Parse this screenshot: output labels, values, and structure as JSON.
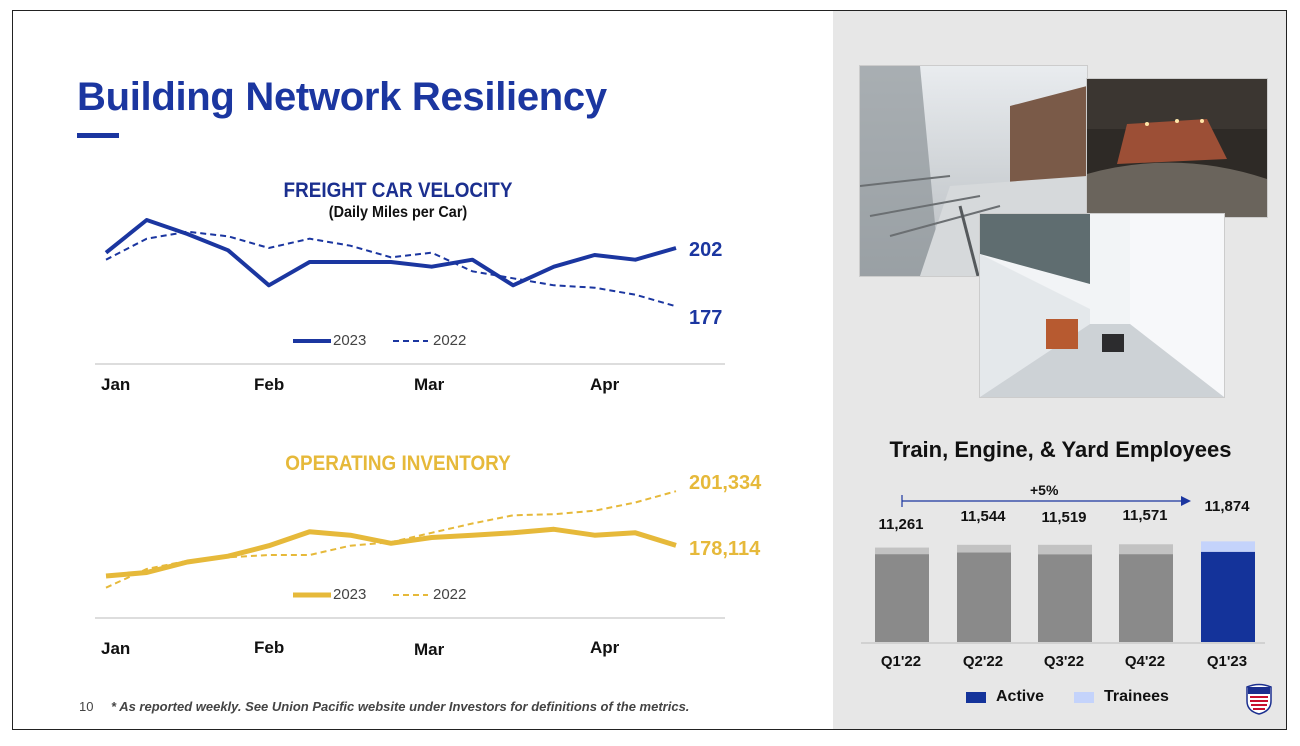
{
  "title": "Building Network Resiliency",
  "footnote_number": "10",
  "footnote": "* As reported weekly. See Union Pacific website under Investors for definitions of the metrics.",
  "colors": {
    "blue": "#1b36a0",
    "gold": "#e6b93a",
    "bar_gray": "#8a8a8a",
    "bar_light_gray": "#c2c2c2",
    "bar_active": "#14339a",
    "bar_trainee": "#c4d3fb",
    "panel": "#e7e7e7"
  },
  "chart_data": [
    {
      "type": "line",
      "title": "FREIGHT CAR VELOCITY",
      "subtitle": "(Daily Miles per Car)",
      "x_ticks": [
        "Jan",
        "Feb",
        "Mar",
        "Apr"
      ],
      "weeks": 15,
      "ylim": [
        160,
        220
      ],
      "series": [
        {
          "name": "2023",
          "style": "solid",
          "end_label": "202",
          "values": [
            200,
            214,
            208,
            201,
            186,
            196,
            196,
            196,
            194,
            197,
            186,
            194,
            199,
            197,
            202
          ]
        },
        {
          "name": "2022",
          "style": "dashed",
          "end_label": "177",
          "values": [
            197,
            206,
            209,
            207,
            202,
            206,
            203,
            198,
            200,
            192,
            189,
            186,
            185,
            182,
            177
          ]
        }
      ]
    },
    {
      "type": "line",
      "title": "OPERATING INVENTORY",
      "x_ticks": [
        "Jan",
        "Feb",
        "Mar",
        "Apr"
      ],
      "weeks": 15,
      "ylim": [
        150000,
        210000
      ],
      "series": [
        {
          "name": "2023",
          "style": "solid",
          "end_label": "178,114",
          "values": [
            165000,
            166500,
            171000,
            173500,
            178000,
            184000,
            182500,
            179000,
            181500,
            182500,
            183500,
            185000,
            182500,
            183500,
            178114
          ]
        },
        {
          "name": "2022",
          "style": "dashed",
          "end_label": "201,334",
          "values": [
            160000,
            168000,
            171500,
            173000,
            174000,
            174000,
            178000,
            179500,
            183500,
            187500,
            191000,
            191500,
            193000,
            196500,
            201334
          ]
        }
      ]
    },
    {
      "type": "bar",
      "title": "Train, Engine, & Yard Employees",
      "categories": [
        "Q1'22",
        "Q2'22",
        "Q3'22",
        "Q4'22",
        "Q1'23"
      ],
      "totals": [
        "11,261",
        "11,544",
        "11,519",
        "11,571",
        "11,874"
      ],
      "series": [
        {
          "name": "Active",
          "values": [
            10650,
            10830,
            10640,
            10650,
            10900
          ]
        },
        {
          "name": "Trainees",
          "values": [
            611,
            714,
            879,
            921,
            974
          ]
        }
      ],
      "growth_label": "+5%",
      "legend": [
        "Active",
        "Trainees"
      ]
    }
  ]
}
